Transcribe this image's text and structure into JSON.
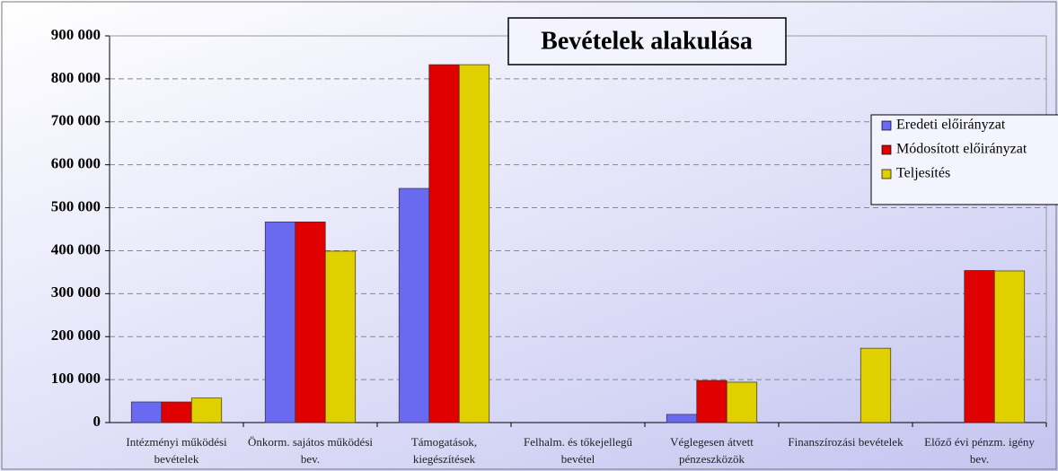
{
  "chart_data": {
    "type": "bar",
    "title": "Bevételek alakulása",
    "categories": [
      "Intézményi működési bevételek",
      "Önkorm. sajátos működési bev.",
      "Támogatások, kiegészítések",
      "Felhalm. és tőkejellegű bevétel",
      "Véglegesen átvett pénzeszközök",
      "Finanszírozási bevételek",
      "Előző évi pénzm. igény bev."
    ],
    "series": [
      {
        "name": "Eredeti előirányzat",
        "color": "#6a6af0",
        "values": [
          48000,
          467000,
          545000,
          0,
          19000,
          0,
          0
        ]
      },
      {
        "name": "Módosított előirányzat",
        "color": "#e00000",
        "values": [
          48000,
          467000,
          833000,
          0,
          98000,
          0,
          354000
        ]
      },
      {
        "name": "Teljesítés",
        "color": "#e0d000",
        "values": [
          57000,
          399000,
          833000,
          0,
          94000,
          173000,
          353000
        ]
      }
    ],
    "ylim": [
      0,
      900000
    ],
    "yticks": [
      0,
      {
        "value": 100000,
        "label": "100 000"
      },
      {
        "value": 200000,
        "label": "200 000"
      },
      {
        "value": 300000,
        "label": "300 000"
      },
      {
        "value": 400000,
        "label": "400 000"
      },
      {
        "value": 500000,
        "label": "500 000"
      },
      {
        "value": 600000,
        "label": "600 000"
      },
      {
        "value": 700000,
        "label": "700 000"
      },
      {
        "value": 800000,
        "label": "800 000"
      },
      {
        "value": 900000,
        "label": "900 000"
      }
    ],
    "grid": true,
    "legend": "right"
  }
}
